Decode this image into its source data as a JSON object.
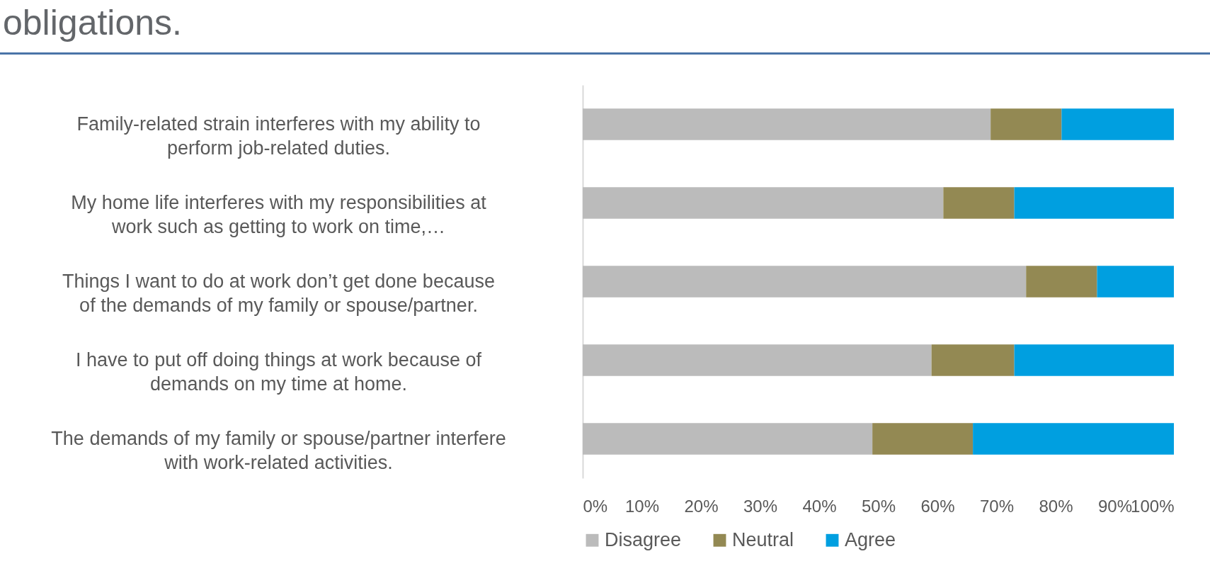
{
  "chart_data": {
    "type": "bar",
    "orientation": "horizontal",
    "stacked": true,
    "title": "obligations.",
    "categories": [
      "Family-related strain interferes with my ability to perform job-related duties.",
      "My home life interferes with my responsibilities at work such as getting to work on time,…",
      "Things I want to do at work don’t get done because of the demands of my family or spouse/partner.",
      "I have to put off doing things at work because of demands on my time at home.",
      "The demands of my family or spouse/partner interfere with work-related activities."
    ],
    "series": [
      {
        "name": "Disagree",
        "color": "#bbbbbb",
        "values": [
          69,
          61,
          75,
          59,
          49
        ]
      },
      {
        "name": "Neutral",
        "color": "#938953",
        "values": [
          12,
          12,
          12,
          14,
          17
        ]
      },
      {
        "name": "Agree",
        "color": "#009fe0",
        "values": [
          19,
          27,
          13,
          27,
          34
        ]
      }
    ],
    "xlim": [
      0,
      100
    ],
    "xticks": [
      {
        "value": 0,
        "label": "0%"
      },
      {
        "value": 10,
        "label": "10%"
      },
      {
        "value": 20,
        "label": "20%"
      },
      {
        "value": 30,
        "label": "30%"
      },
      {
        "value": 40,
        "label": "40%"
      },
      {
        "value": 50,
        "label": "50%"
      },
      {
        "value": 60,
        "label": "60%"
      },
      {
        "value": 70,
        "label": "70%"
      },
      {
        "value": 80,
        "label": "80%"
      },
      {
        "value": 90,
        "label": "90%"
      },
      {
        "value": 100,
        "label": "100%"
      }
    ],
    "legend": "bottom"
  }
}
